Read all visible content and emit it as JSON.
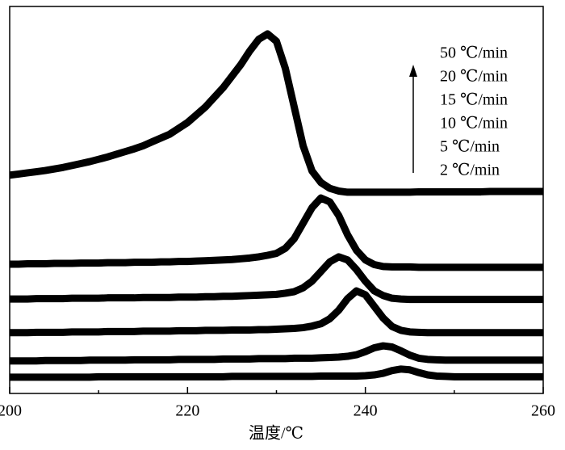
{
  "chart_data": {
    "type": "line",
    "xlabel": "温度/℃",
    "x": [
      200,
      201,
      202,
      203,
      204,
      205,
      206,
      207,
      208,
      209,
      210,
      211,
      212,
      213,
      214,
      215,
      216,
      217,
      218,
      219,
      220,
      221,
      222,
      223,
      224,
      225,
      226,
      227,
      228,
      229,
      230,
      231,
      232,
      233,
      234,
      235,
      236,
      237,
      238,
      239,
      240,
      241,
      242,
      243,
      244,
      245,
      246,
      247,
      248,
      249,
      250,
      251,
      252,
      253,
      254,
      255,
      256,
      257,
      258,
      259,
      260
    ],
    "xlim": [
      200,
      260
    ],
    "xticks": [
      200,
      220,
      240,
      260
    ],
    "xminor_ticks": [
      210,
      230,
      250
    ],
    "ylim": [
      0,
      100
    ],
    "grid": false,
    "legend": "upper right",
    "series": [
      {
        "name": "50 ℃/min",
        "color": "#000000",
        "values": [
          56.4,
          56.7,
          57.0,
          57.3,
          57.6,
          58.0,
          58.4,
          58.9,
          59.4,
          59.9,
          60.5,
          61.1,
          61.8,
          62.5,
          63.2,
          64.0,
          65.0,
          66.0,
          67.0,
          68.5,
          70.0,
          72.0,
          74.0,
          76.5,
          79.0,
          82.0,
          85.0,
          88.5,
          91.5,
          92.9,
          91.0,
          84.0,
          74.0,
          64.0,
          57.5,
          54.5,
          53.0,
          52.3,
          52.0,
          52.0,
          52.0,
          52.0,
          52.0,
          52.0,
          52.0,
          52.0,
          52.1,
          52.1,
          52.1,
          52.1,
          52.1,
          52.1,
          52.1,
          52.1,
          52.2,
          52.2,
          52.2,
          52.2,
          52.2,
          52.2,
          52.2
        ]
      },
      {
        "name": "20 ℃/min",
        "color": "#000000",
        "values": [
          33.4,
          33.4,
          33.5,
          33.5,
          33.5,
          33.6,
          33.6,
          33.6,
          33.7,
          33.7,
          33.7,
          33.8,
          33.8,
          33.8,
          33.9,
          33.9,
          33.9,
          34.0,
          34.0,
          34.1,
          34.1,
          34.2,
          34.3,
          34.4,
          34.5,
          34.6,
          34.8,
          35.0,
          35.3,
          35.7,
          36.2,
          37.5,
          40,
          44,
          48,
          50.5,
          49.5,
          46,
          41,
          37,
          34.5,
          33.3,
          32.8,
          32.7,
          32.7,
          32.7,
          32.6,
          32.6,
          32.6,
          32.6,
          32.6,
          32.6,
          32.6,
          32.6,
          32.6,
          32.6,
          32.6,
          32.6,
          32.6,
          32.6,
          32.6
        ]
      },
      {
        "name": "15 ℃/min",
        "color": "#000000",
        "values": [
          24.4,
          24.4,
          24.4,
          24.5,
          24.5,
          24.5,
          24.5,
          24.6,
          24.6,
          24.6,
          24.6,
          24.7,
          24.7,
          24.7,
          24.7,
          24.8,
          24.8,
          24.8,
          24.8,
          24.9,
          24.9,
          24.9,
          25.0,
          25.0,
          25.1,
          25.1,
          25.2,
          25.3,
          25.4,
          25.5,
          25.6,
          25.9,
          26.3,
          27.3,
          29,
          31.5,
          34,
          35.3,
          34.5,
          32,
          29,
          26.5,
          25.3,
          24.6,
          24.4,
          24.3,
          24.3,
          24.3,
          24.3,
          24.3,
          24.3,
          24.3,
          24.3,
          24.3,
          24.3,
          24.3,
          24.3,
          24.3,
          24.3,
          24.3,
          24.3
        ]
      },
      {
        "name": "10 ℃/min",
        "color": "#000000",
        "values": [
          15.7,
          15.7,
          15.7,
          15.8,
          15.8,
          15.8,
          15.8,
          15.9,
          15.9,
          15.9,
          15.9,
          16.0,
          16.0,
          16.0,
          16.0,
          16.1,
          16.1,
          16.1,
          16.1,
          16.2,
          16.2,
          16.2,
          16.3,
          16.3,
          16.3,
          16.4,
          16.4,
          16.4,
          16.5,
          16.5,
          16.6,
          16.7,
          16.8,
          17.0,
          17.4,
          18.0,
          19.3,
          21.5,
          24.5,
          26.5,
          25.5,
          22.5,
          19.5,
          17.3,
          16.3,
          15.9,
          15.8,
          15.7,
          15.7,
          15.7,
          15.7,
          15.7,
          15.7,
          15.7,
          15.7,
          15.7,
          15.7,
          15.7,
          15.7,
          15.7,
          15.7
        ]
      },
      {
        "name": "5 ℃/min",
        "color": "#000000",
        "values": [
          8.4,
          8.4,
          8.4,
          8.4,
          8.5,
          8.5,
          8.5,
          8.5,
          8.5,
          8.6,
          8.6,
          8.6,
          8.6,
          8.6,
          8.7,
          8.7,
          8.7,
          8.7,
          8.7,
          8.8,
          8.8,
          8.8,
          8.8,
          8.8,
          8.9,
          8.9,
          8.9,
          8.9,
          9.0,
          9.0,
          9.0,
          9.0,
          9.1,
          9.1,
          9.1,
          9.2,
          9.3,
          9.4,
          9.6,
          10.0,
          10.8,
          11.8,
          12.3,
          12.0,
          11.0,
          9.9,
          9.1,
          8.8,
          8.7,
          8.6,
          8.6,
          8.6,
          8.6,
          8.6,
          8.6,
          8.6,
          8.6,
          8.6,
          8.6,
          8.6,
          8.6
        ]
      },
      {
        "name": "2 ℃/min",
        "color": "#000000",
        "values": [
          4.2,
          4.2,
          4.2,
          4.2,
          4.2,
          4.2,
          4.2,
          4.2,
          4.2,
          4.2,
          4.3,
          4.3,
          4.3,
          4.3,
          4.3,
          4.3,
          4.3,
          4.3,
          4.3,
          4.3,
          4.3,
          4.3,
          4.3,
          4.3,
          4.3,
          4.4,
          4.4,
          4.4,
          4.4,
          4.4,
          4.4,
          4.4,
          4.4,
          4.4,
          4.4,
          4.5,
          4.5,
          4.5,
          4.5,
          4.5,
          4.6,
          4.8,
          5.2,
          5.9,
          6.3,
          6.1,
          5.4,
          4.8,
          4.5,
          4.4,
          4.3,
          4.3,
          4.3,
          4.3,
          4.3,
          4.3,
          4.3,
          4.3,
          4.3,
          4.3,
          4.3
        ]
      }
    ]
  }
}
